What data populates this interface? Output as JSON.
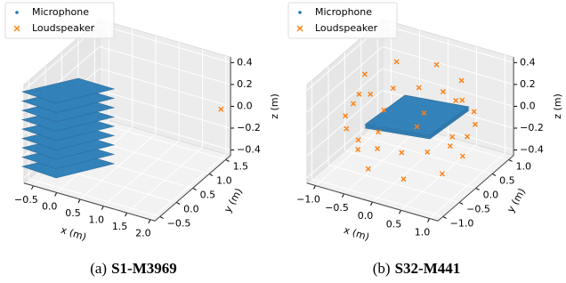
{
  "chart_data": [
    {
      "type": "scatter3d",
      "caption_label": "(a)",
      "caption": "S1-M3969",
      "xlabel": "x (m)",
      "ylabel": "y (m)",
      "zlabel": "z (m)",
      "xlim": [
        -0.7,
        2.1
      ],
      "ylim": [
        -0.65,
        1.65
      ],
      "zlim": [
        -0.45,
        0.45
      ],
      "xticks": [
        {
          "value": -0.5,
          "label": "−0.5"
        },
        {
          "value": 0,
          "label": "0.0"
        },
        0.5,
        {
          "value": 1,
          "label": "1.0"
        },
        1.5,
        {
          "value": 2,
          "label": "2.0"
        }
      ],
      "yticks": [
        {
          "value": -0.5,
          "label": "−0.5"
        },
        {
          "value": 0,
          "label": "0.0"
        },
        0.5,
        {
          "value": 1,
          "label": "1.0"
        },
        1.5
      ],
      "zticks": [
        {
          "value": -0.4,
          "label": "−0.4"
        },
        {
          "value": -0.2,
          "label": "−0.2"
        },
        {
          "value": 0,
          "label": "0.0"
        },
        0.2,
        0.4
      ],
      "grid": true,
      "legend": "upper left",
      "series": [
        {
          "name": "Microphone",
          "color": "#1f77b4",
          "marker": "dot"
        },
        {
          "name": "Loudspeaker",
          "color": "#ff7f0e",
          "marker": "x",
          "x": [
            2.0
          ],
          "y": [
            1.5
          ],
          "z": [
            0.0
          ]
        }
      ]
    },
    {
      "type": "scatter3d",
      "caption_label": "(b)",
      "caption": "S32-M441",
      "xlabel": "x (m)",
      "ylabel": "y (m)",
      "zlabel": "z (m)",
      "xlim": [
        -1.15,
        1.15
      ],
      "ylim": [
        -1.15,
        1.15
      ],
      "zlim": [
        -0.45,
        0.45
      ],
      "xticks": [
        {
          "value": -1,
          "label": "−1.0"
        },
        {
          "value": -0.5,
          "label": "−0.5"
        },
        {
          "value": 0,
          "label": "0.0"
        },
        0.5,
        {
          "value": 1,
          "label": "1.0"
        }
      ],
      "yticks": [
        {
          "value": -1,
          "label": "−1.0"
        },
        {
          "value": -0.5,
          "label": "−0.5"
        },
        {
          "value": 0,
          "label": "0.0"
        },
        0.5,
        {
          "value": 1,
          "label": "1.0"
        }
      ],
      "zticks": [
        {
          "value": -0.4,
          "label": "−0.4"
        },
        {
          "value": -0.2,
          "label": "−0.2"
        },
        {
          "value": 0,
          "label": "0.0"
        },
        0.2,
        0.4
      ],
      "grid": true,
      "legend": "upper left",
      "series": [
        {
          "name": "Microphone",
          "color": "#1f77b4",
          "marker": "dot"
        },
        {
          "name": "Loudspeaker",
          "color": "#ff7f0e",
          "marker": "x",
          "x": [
            1,
            0.92,
            0.71,
            0.38,
            0,
            -0.38,
            -0.71,
            -0.92,
            -1,
            -0.92,
            -0.71,
            -0.38,
            0,
            0.38,
            0.71,
            0.92,
            0.8,
            0.57,
            0,
            -0.57,
            -0.8,
            -0.57,
            0,
            0.57,
            0.74,
            0.31,
            -0.31,
            -0.74,
            -0.74,
            -0.31,
            0.31,
            0.74
          ],
          "y": [
            0,
            0.38,
            0.71,
            0.92,
            1,
            0.92,
            0.71,
            0.38,
            0,
            -0.38,
            -0.71,
            -0.92,
            -1,
            -0.92,
            -0.71,
            -0.38,
            0,
            0.57,
            0.8,
            0.57,
            0,
            -0.57,
            -0.8,
            -0.57,
            0.31,
            0.74,
            0.74,
            0.31,
            -0.31,
            -0.74,
            -0.74,
            -0.31
          ],
          "z": [
            0,
            0,
            0,
            0,
            0,
            0,
            0,
            0,
            0,
            0,
            0,
            0,
            0,
            0,
            0,
            0,
            0.3,
            0.3,
            0.3,
            0.3,
            0.3,
            0.3,
            0.3,
            0.3,
            -0.3,
            -0.3,
            -0.3,
            -0.3,
            -0.3,
            -0.3,
            -0.3,
            -0.3
          ]
        }
      ]
    }
  ]
}
